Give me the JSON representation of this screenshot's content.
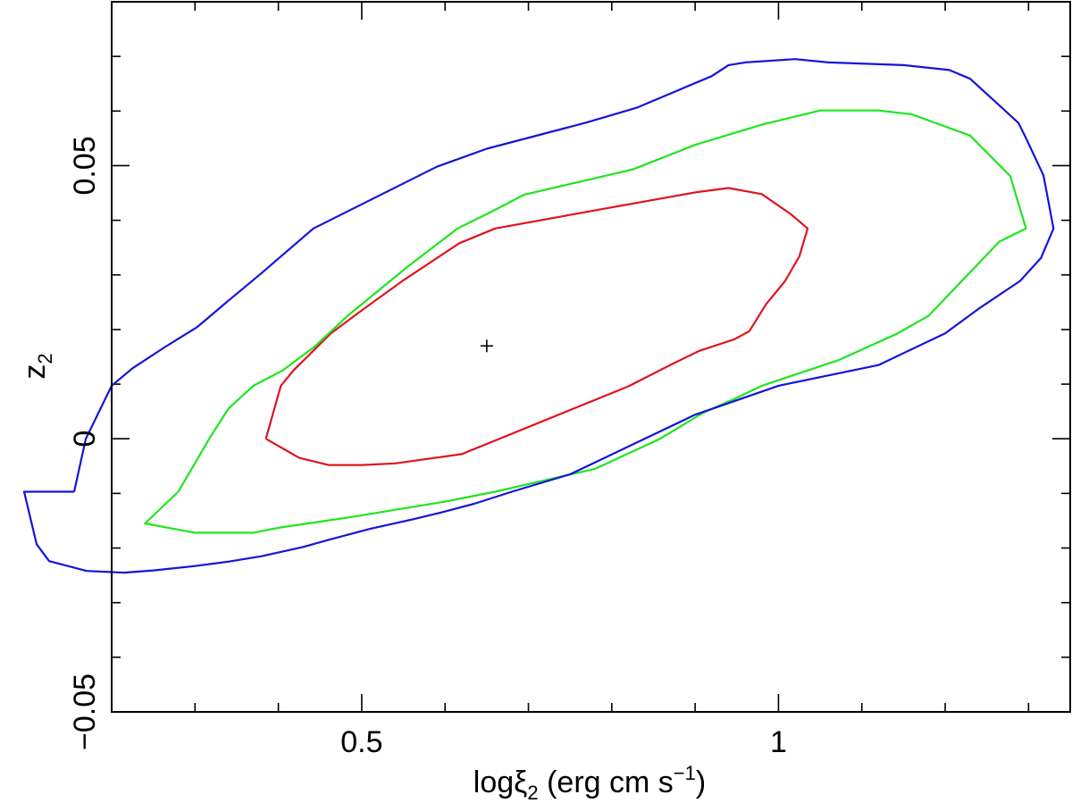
{
  "chart_data": {
    "type": "contour",
    "xlabel": {
      "main": "logξ",
      "sub": "2",
      "rest": " (erg cm s",
      "sup": "−1",
      "end": ")"
    },
    "ylabel": {
      "main": "z",
      "sub": "2"
    },
    "xlim": [
      0.2,
      1.35
    ],
    "ylim": [
      -0.05,
      0.08
    ],
    "xticks": {
      "major": [
        0.5,
        1.0
      ],
      "minor_step": 0.1
    },
    "yticks": {
      "major": [
        -0.05,
        0.0,
        0.05
      ],
      "minor_step": 0.01
    },
    "xtick_labels": [
      "0.5",
      "1"
    ],
    "ytick_labels": [
      "−0.05",
      "0",
      "0.05"
    ],
    "best_fit": {
      "x": 0.65,
      "y": 0.017
    },
    "series": [
      {
        "color": "#e0141e",
        "points": [
          [
            0.385,
            0.0
          ],
          [
            0.403,
            0.0097
          ],
          [
            0.418,
            0.0125
          ],
          [
            0.463,
            0.0193
          ],
          [
            0.5,
            0.0235
          ],
          [
            0.548,
            0.0288
          ],
          [
            0.617,
            0.0358
          ],
          [
            0.66,
            0.0385
          ],
          [
            0.79,
            0.0421
          ],
          [
            0.9,
            0.0451
          ],
          [
            0.94,
            0.0459
          ],
          [
            0.98,
            0.0448
          ],
          [
            1.015,
            0.0411
          ],
          [
            1.035,
            0.0385
          ],
          [
            1.025,
            0.0334
          ],
          [
            1.008,
            0.0289
          ],
          [
            0.985,
            0.0246
          ],
          [
            0.965,
            0.0197
          ],
          [
            0.947,
            0.0182
          ],
          [
            0.905,
            0.0161
          ],
          [
            0.87,
            0.0135
          ],
          [
            0.82,
            0.0096
          ],
          [
            0.62,
            -0.0028
          ],
          [
            0.54,
            -0.0045
          ],
          [
            0.5,
            -0.0048
          ],
          [
            0.46,
            -0.0048
          ],
          [
            0.425,
            -0.0035
          ],
          [
            0.385,
            0.0
          ]
        ]
      },
      {
        "color": "#1ee61e",
        "points": [
          [
            0.28,
            -0.0097
          ],
          [
            0.317,
            0.0
          ],
          [
            0.34,
            0.0055
          ],
          [
            0.37,
            0.0097
          ],
          [
            0.405,
            0.0125
          ],
          [
            0.443,
            0.0168
          ],
          [
            0.483,
            0.0225
          ],
          [
            0.555,
            0.0315
          ],
          [
            0.615,
            0.0385
          ],
          [
            0.655,
            0.0415
          ],
          [
            0.695,
            0.0447
          ],
          [
            0.825,
            0.0493
          ],
          [
            0.9,
            0.0538
          ],
          [
            0.98,
            0.0575
          ],
          [
            1.05,
            0.0601
          ],
          [
            1.12,
            0.0601
          ],
          [
            1.16,
            0.0594
          ],
          [
            1.23,
            0.0555
          ],
          [
            1.278,
            0.0481
          ],
          [
            1.297,
            0.0385
          ],
          [
            1.265,
            0.0361
          ],
          [
            1.22,
            0.0289
          ],
          [
            1.18,
            0.0225
          ],
          [
            1.143,
            0.0193
          ],
          [
            1.072,
            0.0144
          ],
          [
            0.98,
            0.0097
          ],
          [
            0.95,
            0.0075
          ],
          [
            0.91,
            0.0048
          ],
          [
            0.858,
            0.0
          ],
          [
            0.78,
            -0.0055
          ],
          [
            0.66,
            -0.0097
          ],
          [
            0.6,
            -0.0115
          ],
          [
            0.48,
            -0.0145
          ],
          [
            0.4,
            -0.0163
          ],
          [
            0.37,
            -0.0172
          ],
          [
            0.3,
            -0.0172
          ],
          [
            0.268,
            -0.0163
          ],
          [
            0.24,
            -0.0155
          ],
          [
            0.28,
            -0.0097
          ]
        ]
      },
      {
        "color": "#1414dc",
        "points": [
          [
            0.155,
            -0.0097
          ],
          [
            0.169,
            0.0
          ],
          [
            0.2,
            0.0097
          ],
          [
            0.225,
            0.0129
          ],
          [
            0.264,
            0.0168
          ],
          [
            0.303,
            0.0205
          ],
          [
            0.337,
            0.0249
          ],
          [
            0.378,
            0.0301
          ],
          [
            0.442,
            0.0385
          ],
          [
            0.59,
            0.0498
          ],
          [
            0.65,
            0.0531
          ],
          [
            0.77,
            0.0579
          ],
          [
            0.83,
            0.0606
          ],
          [
            0.92,
            0.0664
          ],
          [
            0.94,
            0.0684
          ],
          [
            0.96,
            0.0689
          ],
          [
            1.02,
            0.0695
          ],
          [
            1.06,
            0.0689
          ],
          [
            1.15,
            0.0684
          ],
          [
            1.205,
            0.0675
          ],
          [
            1.23,
            0.0659
          ],
          [
            1.268,
            0.0606
          ],
          [
            1.288,
            0.0578
          ],
          [
            1.298,
            0.0547
          ],
          [
            1.318,
            0.0482
          ],
          [
            1.33,
            0.0385
          ],
          [
            1.315,
            0.0331
          ],
          [
            1.29,
            0.0289
          ],
          [
            1.24,
            0.0238
          ],
          [
            1.2,
            0.0193
          ],
          [
            1.12,
            0.0135
          ],
          [
            1.0,
            0.0097
          ],
          [
            0.9,
            0.0044
          ],
          [
            0.75,
            -0.0065
          ],
          [
            0.68,
            -0.0097
          ],
          [
            0.635,
            -0.0119
          ],
          [
            0.595,
            -0.0135
          ],
          [
            0.56,
            -0.0148
          ],
          [
            0.51,
            -0.0165
          ],
          [
            0.46,
            -0.0185
          ],
          [
            0.43,
            -0.0198
          ],
          [
            0.38,
            -0.0215
          ],
          [
            0.34,
            -0.0225
          ],
          [
            0.3,
            -0.0233
          ],
          [
            0.25,
            -0.0241
          ],
          [
            0.215,
            -0.0245
          ],
          [
            0.17,
            -0.0242
          ],
          [
            0.125,
            -0.0224
          ],
          [
            0.11,
            -0.0193
          ],
          [
            0.095,
            -0.0097
          ],
          [
            0.155,
            -0.0097
          ]
        ]
      }
    ]
  }
}
